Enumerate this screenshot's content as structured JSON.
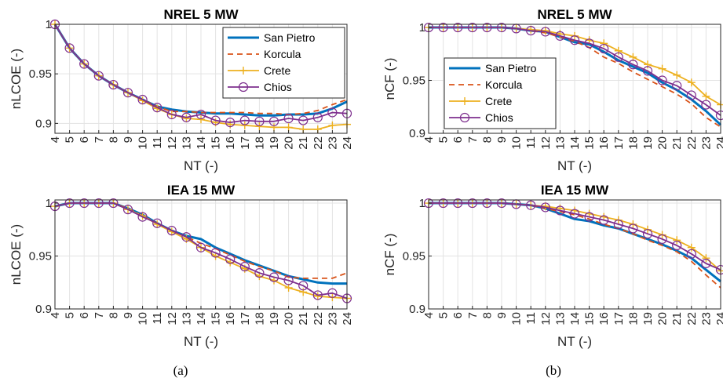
{
  "figure": {
    "captions": [
      "(a)",
      "(b)"
    ]
  },
  "colors": {
    "San Pietro": "#0072bd",
    "Korcula": "#d95319",
    "Crete": "#edb120",
    "Chios": "#7e2f8e",
    "grid": "#e3e3e3",
    "axis": "#262626"
  },
  "chart_data": [
    {
      "id": "a-top",
      "type": "line",
      "title": "NREL 5 MW",
      "xlabel": "NT (-)",
      "ylabel": "nLCOE (-)",
      "x": [
        4,
        5,
        6,
        7,
        8,
        9,
        10,
        11,
        12,
        13,
        14,
        15,
        16,
        17,
        18,
        19,
        20,
        21,
        22,
        23,
        24
      ],
      "xlim": [
        4,
        24
      ],
      "ylim": [
        0.89,
        1.0
      ],
      "yticks": [
        0.9,
        0.95,
        1
      ],
      "ytick_labels": [
        "0.9",
        "0.95",
        "1"
      ],
      "grid": true,
      "legend": {
        "position": "top-right",
        "entries": [
          "San Pietro",
          "Korcula",
          "Crete",
          "Chios"
        ]
      },
      "series": [
        {
          "name": "San Pietro",
          "style": "solid",
          "marker": "none",
          "values": [
            1.0,
            0.976,
            0.96,
            0.948,
            0.939,
            0.931,
            0.924,
            0.917,
            0.914,
            0.912,
            0.911,
            0.91,
            0.91,
            0.909,
            0.908,
            0.908,
            0.909,
            0.909,
            0.91,
            0.915,
            0.922
          ]
        },
        {
          "name": "Korcula",
          "style": "dashed",
          "marker": "none",
          "values": [
            1.0,
            0.976,
            0.96,
            0.948,
            0.939,
            0.931,
            0.924,
            0.917,
            0.912,
            0.912,
            0.911,
            0.911,
            0.911,
            0.911,
            0.91,
            0.91,
            0.909,
            0.91,
            0.913,
            0.919,
            0.924
          ]
        },
        {
          "name": "Crete",
          "style": "solid",
          "marker": "plus",
          "values": [
            1.0,
            0.976,
            0.96,
            0.948,
            0.939,
            0.931,
            0.923,
            0.915,
            0.909,
            0.905,
            0.904,
            0.901,
            0.899,
            0.898,
            0.897,
            0.896,
            0.896,
            0.894,
            0.894,
            0.898,
            0.899
          ]
        },
        {
          "name": "Chios",
          "style": "solid",
          "marker": "circle",
          "values": [
            1.0,
            0.976,
            0.96,
            0.948,
            0.939,
            0.931,
            0.924,
            0.916,
            0.909,
            0.906,
            0.909,
            0.903,
            0.901,
            0.903,
            0.902,
            0.902,
            0.905,
            0.903,
            0.906,
            0.911,
            0.91
          ]
        }
      ]
    },
    {
      "id": "a-bottom",
      "type": "line",
      "title": "IEA 15 MW",
      "xlabel": "NT (-)",
      "ylabel": "nLCOE (-)",
      "x": [
        4,
        5,
        6,
        7,
        8,
        9,
        10,
        11,
        12,
        13,
        14,
        15,
        16,
        17,
        18,
        19,
        20,
        21,
        22,
        23,
        24
      ],
      "xlim": [
        4,
        24
      ],
      "ylim": [
        0.9,
        1.003
      ],
      "yticks": [
        0.9,
        0.95,
        1
      ],
      "ytick_labels": [
        "0.9",
        "0.95",
        "1"
      ],
      "grid": true,
      "legend": null,
      "series": [
        {
          "name": "San Pietro",
          "style": "solid",
          "marker": "none",
          "values": [
            0.997,
            1.0,
            1.0,
            1.0,
            1.0,
            0.995,
            0.989,
            0.981,
            0.974,
            0.969,
            0.966,
            0.958,
            0.952,
            0.946,
            0.941,
            0.936,
            0.931,
            0.928,
            0.925,
            0.924,
            0.924
          ]
        },
        {
          "name": "Korcula",
          "style": "dashed",
          "marker": "none",
          "values": [
            0.997,
            1.0,
            1.0,
            1.0,
            1.0,
            0.995,
            0.988,
            0.981,
            0.974,
            0.968,
            0.962,
            0.957,
            0.951,
            0.945,
            0.94,
            0.936,
            0.93,
            0.929,
            0.929,
            0.929,
            0.934
          ]
        },
        {
          "name": "Crete",
          "style": "solid",
          "marker": "plus",
          "values": [
            0.997,
            1.0,
            1.0,
            1.0,
            1.0,
            0.994,
            0.988,
            0.98,
            0.973,
            0.966,
            0.958,
            0.95,
            0.944,
            0.938,
            0.931,
            0.927,
            0.92,
            0.916,
            0.912,
            0.911,
            0.91
          ]
        },
        {
          "name": "Chios",
          "style": "solid",
          "marker": "circle",
          "values": [
            0.997,
            1.0,
            1.0,
            1.0,
            1.0,
            0.994,
            0.987,
            0.981,
            0.974,
            0.968,
            0.958,
            0.953,
            0.947,
            0.94,
            0.934,
            0.93,
            0.927,
            0.922,
            0.913,
            0.915,
            0.91
          ]
        }
      ]
    },
    {
      "id": "b-top",
      "type": "line",
      "title": "NREL 5 MW",
      "xlabel": "NT (-)",
      "ylabel": "nCF (-)",
      "x": [
        4,
        5,
        6,
        7,
        8,
        9,
        10,
        11,
        12,
        13,
        14,
        15,
        16,
        17,
        18,
        19,
        20,
        21,
        22,
        23,
        24
      ],
      "xlim": [
        4,
        24
      ],
      "ylim": [
        0.9,
        1.003
      ],
      "yticks": [
        0.9,
        0.95,
        1
      ],
      "ytick_labels": [
        "0.9",
        "0.95",
        "1"
      ],
      "grid": true,
      "legend": {
        "position": "center-left",
        "entries": [
          "San Pietro",
          "Korcula",
          "Crete",
          "Chios"
        ]
      },
      "series": [
        {
          "name": "San Pietro",
          "style": "solid",
          "marker": "none",
          "values": [
            1.0,
            1.0,
            1.0,
            1.0,
            1.0,
            1.0,
            0.999,
            0.997,
            0.996,
            0.991,
            0.986,
            0.984,
            0.977,
            0.969,
            0.963,
            0.957,
            0.948,
            0.941,
            0.932,
            0.921,
            0.908
          ]
        },
        {
          "name": "Korcula",
          "style": "dashed",
          "marker": "none",
          "values": [
            1.0,
            1.0,
            1.0,
            1.0,
            1.0,
            1.0,
            0.999,
            0.997,
            0.995,
            0.991,
            0.987,
            0.981,
            0.972,
            0.966,
            0.958,
            0.951,
            0.944,
            0.937,
            0.928,
            0.915,
            0.906
          ]
        },
        {
          "name": "Crete",
          "style": "solid",
          "marker": "plus",
          "values": [
            1.0,
            1.0,
            1.0,
            1.0,
            1.0,
            1.0,
            0.999,
            0.998,
            0.997,
            0.994,
            0.992,
            0.988,
            0.985,
            0.978,
            0.972,
            0.965,
            0.961,
            0.955,
            0.948,
            0.935,
            0.927
          ]
        },
        {
          "name": "Chios",
          "style": "solid",
          "marker": "circle",
          "values": [
            1.0,
            1.0,
            1.0,
            1.0,
            1.0,
            1.0,
            0.999,
            0.997,
            0.996,
            0.992,
            0.988,
            0.985,
            0.98,
            0.972,
            0.965,
            0.959,
            0.95,
            0.945,
            0.936,
            0.927,
            0.917
          ]
        }
      ]
    },
    {
      "id": "b-bottom",
      "type": "line",
      "title": "IEA 15 MW",
      "xlabel": "NT (-)",
      "ylabel": "nCF (-)",
      "x": [
        4,
        5,
        6,
        7,
        8,
        9,
        10,
        11,
        12,
        13,
        14,
        15,
        16,
        17,
        18,
        19,
        20,
        21,
        22,
        23,
        24
      ],
      "xlim": [
        4,
        24
      ],
      "ylim": [
        0.9,
        1.003
      ],
      "yticks": [
        0.9,
        0.95,
        1
      ],
      "ytick_labels": [
        "0.9",
        "0.95",
        "1"
      ],
      "grid": true,
      "legend": null,
      "series": [
        {
          "name": "San Pietro",
          "style": "solid",
          "marker": "none",
          "values": [
            1.0,
            1.0,
            1.0,
            1.0,
            1.0,
            1.0,
            0.999,
            0.998,
            0.995,
            0.99,
            0.985,
            0.983,
            0.979,
            0.976,
            0.971,
            0.966,
            0.961,
            0.955,
            0.948,
            0.937,
            0.926
          ]
        },
        {
          "name": "Korcula",
          "style": "dashed",
          "marker": "none",
          "values": [
            1.0,
            1.0,
            1.0,
            1.0,
            1.0,
            1.0,
            0.999,
            0.998,
            0.995,
            0.992,
            0.989,
            0.985,
            0.98,
            0.976,
            0.971,
            0.965,
            0.96,
            0.954,
            0.945,
            0.932,
            0.92
          ]
        },
        {
          "name": "Crete",
          "style": "solid",
          "marker": "plus",
          "values": [
            1.0,
            1.0,
            1.0,
            1.0,
            1.0,
            1.0,
            0.999,
            0.998,
            0.997,
            0.995,
            0.993,
            0.99,
            0.987,
            0.984,
            0.98,
            0.975,
            0.97,
            0.965,
            0.958,
            0.948,
            0.936
          ]
        },
        {
          "name": "Chios",
          "style": "solid",
          "marker": "circle",
          "values": [
            1.0,
            1.0,
            1.0,
            1.0,
            1.0,
            1.0,
            0.999,
            0.998,
            0.996,
            0.993,
            0.99,
            0.987,
            0.984,
            0.98,
            0.976,
            0.971,
            0.966,
            0.96,
            0.952,
            0.943,
            0.937
          ]
        }
      ]
    }
  ]
}
